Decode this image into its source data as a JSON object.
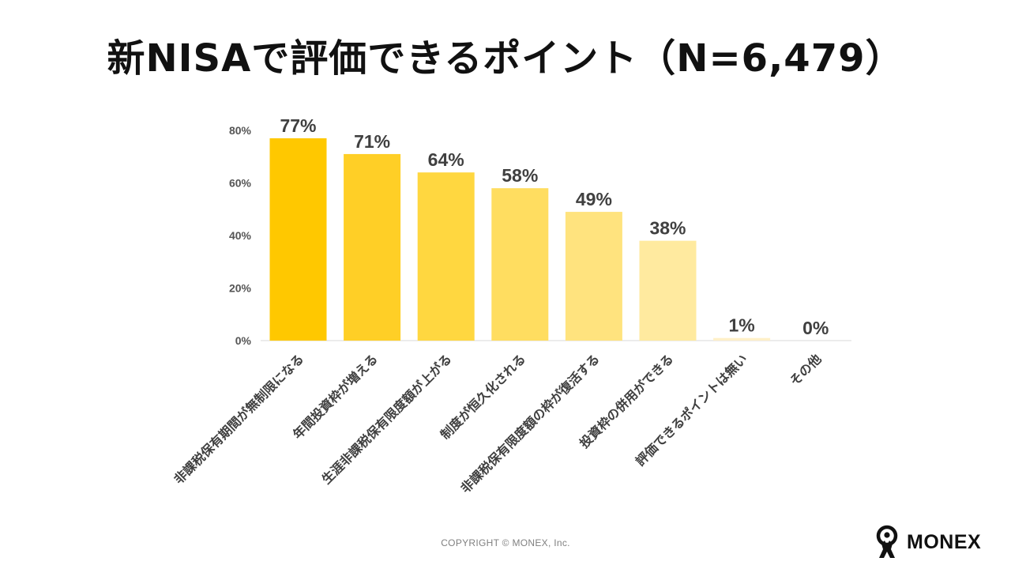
{
  "title": "新NISAで評価できるポイント（N=6,479）",
  "footer": {
    "copyright": "COPYRIGHT © MONEX, Inc.",
    "logo_text": "MONEX",
    "logo_icon": "monex-person-icon"
  },
  "chart_data": {
    "type": "bar",
    "title": "新NISAで評価できるポイント（N=6,479）",
    "xlabel": "",
    "ylabel": "",
    "ylim": [
      0,
      80
    ],
    "yticks": [
      "0%",
      "20%",
      "40%",
      "60%",
      "80%"
    ],
    "grid": false,
    "legend": "none",
    "categories": [
      "非課税保有期間が無制限になる",
      "年間投資枠が増える",
      "生涯非課税保有限度額が上がる",
      "制度が恒久化される",
      "非課税保有限度額の枠が復活する",
      "投資枠の併用ができる",
      "評価できるポイントは無い",
      "その他"
    ],
    "values": [
      77,
      71,
      64,
      58,
      49,
      38,
      1,
      0
    ],
    "value_labels": [
      "77%",
      "71%",
      "64%",
      "58%",
      "49%",
      "38%",
      "1%",
      "0%"
    ],
    "colors": [
      "#FFC800",
      "#FFCF26",
      "#FFD740",
      "#FFDD60",
      "#FFE37E",
      "#FFEA9F",
      "#FFF0C8",
      "#FFF4D8"
    ]
  }
}
